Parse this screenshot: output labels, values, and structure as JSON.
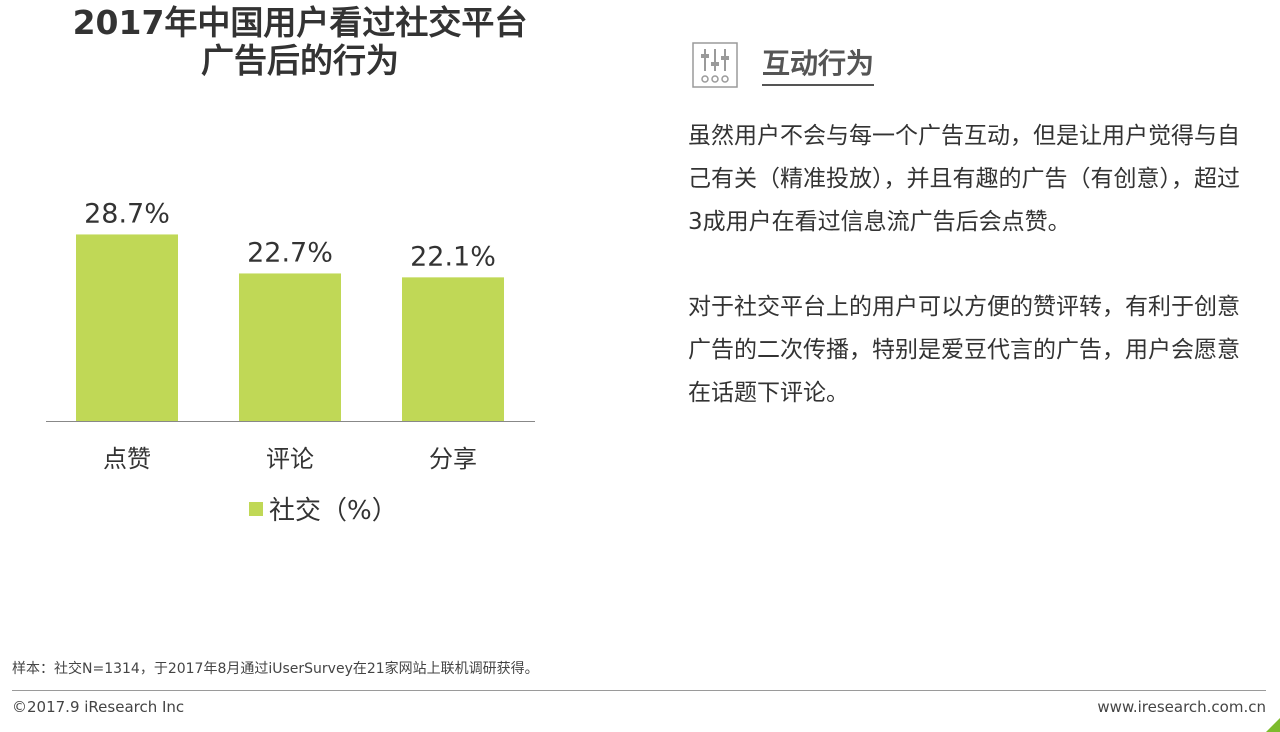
{
  "title_lines": [
    "2017年中国用户看过社交平台",
    "广告后的行为"
  ],
  "chart_data": {
    "type": "bar",
    "categories": [
      "点赞",
      "评论",
      "分享"
    ],
    "series": [
      {
        "name": "社交（%）",
        "values": [
          28.7,
          22.7,
          22.1
        ]
      }
    ],
    "data_labels": [
      "28.7%",
      "22.7%",
      "22.1%"
    ],
    "ylim": [
      0,
      30
    ],
    "grid": false,
    "legend_position": "bottom",
    "colors": {
      "bar": "#c0d856",
      "axis": "#888888"
    }
  },
  "section": {
    "title": "互动行为",
    "icon": "sliders-icon"
  },
  "paragraphs": [
    "虽然用户不会与每一个广告互动，但是让用户觉得与自己有关（精准投放），并且有趣的广告（有创意），超过3成用户在看过信息流广告后会点赞。",
    "对于社交平台上的用户可以方便的赞评转，有利于创意广告的二次传播，特别是爱豆代言的广告，用户会愿意在话题下评论。"
  ],
  "footnote": "样本：社交N=1314，于2017年8月通过iUserSurvey在21家网站上联机调研获得。",
  "footer": {
    "copyright": "©2017.9 iResearch Inc",
    "website": "www.iresearch.com.cn"
  },
  "colors": {
    "accent": "#7dbb2d"
  }
}
